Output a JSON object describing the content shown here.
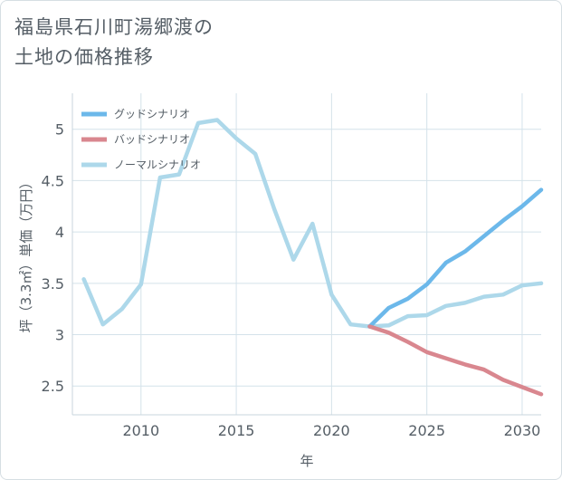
{
  "title_lines": [
    "福島県石川町湯郷渡の",
    "土地の価格推移"
  ],
  "chart_data": {
    "type": "line",
    "title": "福島県石川町湯郷渡の土地の価格推移",
    "xlabel": "年",
    "ylabel": "坪（3.3㎡）単価（万円）",
    "xlim": [
      2006.4,
      2031
    ],
    "ylim": [
      2.22,
      5.35
    ],
    "xticks": [
      2010,
      2015,
      2020,
      2025,
      2030
    ],
    "yticks": [
      2.5,
      3,
      3.5,
      4,
      4.5,
      5
    ],
    "ytick_labels": [
      "2.5",
      "3",
      "3.5",
      "4",
      "4.5",
      "5"
    ],
    "grid": true,
    "legend_position": "top-left",
    "series": [
      {
        "name": "グッドシナリオ",
        "color": "#6cb8ea",
        "x": [
          2022,
          2023,
          2024,
          2025,
          2026,
          2027,
          2028,
          2029,
          2030,
          2031
        ],
        "values": [
          3.08,
          3.26,
          3.35,
          3.49,
          3.7,
          3.81,
          3.96,
          4.11,
          4.25,
          4.41
        ]
      },
      {
        "name": "バッドシナリオ",
        "color": "#d9878f",
        "x": [
          2022,
          2023,
          2024,
          2025,
          2026,
          2027,
          2028,
          2029,
          2030,
          2031
        ],
        "values": [
          3.08,
          3.02,
          2.93,
          2.83,
          2.77,
          2.71,
          2.66,
          2.56,
          2.49,
          2.42
        ]
      },
      {
        "name": "ノーマルシナリオ",
        "color": "#add8ea",
        "x": [
          2007,
          2008,
          2009,
          2010,
          2011,
          2012,
          2013,
          2014,
          2015,
          2016,
          2017,
          2018,
          2019,
          2020,
          2021,
          2022,
          2023,
          2024,
          2025,
          2026,
          2027,
          2028,
          2029,
          2030,
          2031
        ],
        "values": [
          3.54,
          3.1,
          3.25,
          3.49,
          4.53,
          4.56,
          5.06,
          5.09,
          4.91,
          4.76,
          4.22,
          3.73,
          4.08,
          3.39,
          3.1,
          3.08,
          3.09,
          3.18,
          3.19,
          3.28,
          3.31,
          3.37,
          3.39,
          3.48,
          3.5
        ]
      }
    ]
  }
}
